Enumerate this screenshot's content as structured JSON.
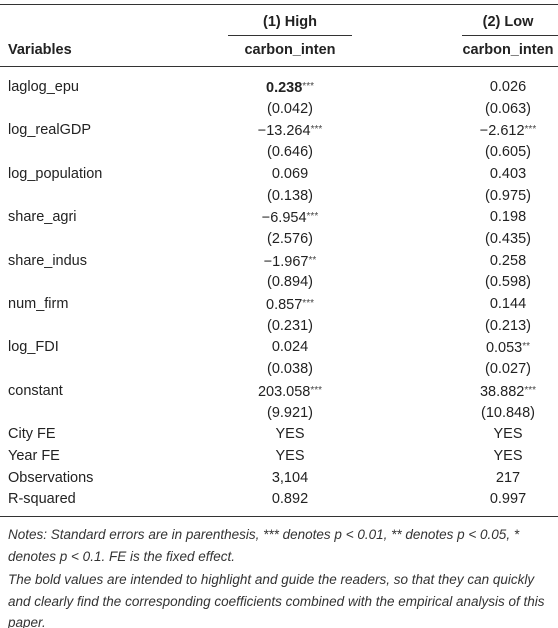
{
  "table": {
    "header": {
      "col1_group": "(1) High",
      "col2_group": "(2) Low",
      "var_label": "Variables",
      "col1": "carbon_inten",
      "col2": "carbon_inten"
    },
    "rows": [
      {
        "label": "laglog_epu",
        "c1": {
          "v": "0.238",
          "s": "***",
          "bold": true
        },
        "c2": {
          "v": "0.026"
        }
      },
      {
        "c1": {
          "v": "(0.042)"
        },
        "c2": {
          "v": "(0.063)"
        }
      },
      {
        "label": "log_realGDP",
        "c1": {
          "v": "−13.264",
          "s": "***"
        },
        "c2": {
          "v": "−2.612",
          "s": "***"
        }
      },
      {
        "c1": {
          "v": "(0.646)"
        },
        "c2": {
          "v": "(0.605)"
        }
      },
      {
        "label": "log_population",
        "c1": {
          "v": "0.069"
        },
        "c2": {
          "v": "0.403"
        }
      },
      {
        "c1": {
          "v": "(0.138)"
        },
        "c2": {
          "v": "(0.975)"
        }
      },
      {
        "label": "share_agri",
        "c1": {
          "v": "−6.954",
          "s": "***"
        },
        "c2": {
          "v": "0.198"
        }
      },
      {
        "c1": {
          "v": "(2.576)"
        },
        "c2": {
          "v": "(0.435)"
        }
      },
      {
        "label": "share_indus",
        "c1": {
          "v": "−1.967",
          "s": "**"
        },
        "c2": {
          "v": "0.258"
        }
      },
      {
        "c1": {
          "v": "(0.894)"
        },
        "c2": {
          "v": "(0.598)"
        }
      },
      {
        "label": "num_firm",
        "c1": {
          "v": "0.857",
          "s": "***"
        },
        "c2": {
          "v": "0.144"
        }
      },
      {
        "c1": {
          "v": "(0.231)"
        },
        "c2": {
          "v": "(0.213)"
        }
      },
      {
        "label": "log_FDI",
        "c1": {
          "v": "0.024"
        },
        "c2": {
          "v": "0.053",
          "s": "**"
        }
      },
      {
        "c1": {
          "v": "(0.038)"
        },
        "c2": {
          "v": "(0.027)"
        }
      },
      {
        "label": "constant",
        "c1": {
          "v": "203.058",
          "s": "***"
        },
        "c2": {
          "v": "38.882",
          "s": "***"
        }
      },
      {
        "c1": {
          "v": "(9.921)"
        },
        "c2": {
          "v": "(10.848)"
        }
      },
      {
        "label": "City FE",
        "c1": {
          "v": "YES"
        },
        "c2": {
          "v": "YES"
        }
      },
      {
        "label": "Year FE",
        "c1": {
          "v": "YES"
        },
        "c2": {
          "v": "YES"
        }
      },
      {
        "label": "Observations",
        "c1": {
          "v": "3,104"
        },
        "c2": {
          "v": "217"
        }
      },
      {
        "label": "R-squared",
        "c1": {
          "v": "0.892"
        },
        "c2": {
          "v": "0.997"
        }
      }
    ]
  },
  "notes": [
    "Notes: Standard errors are in parenthesis, *** denotes p < 0.01, ** denotes p < 0.05, * denotes p < 0.1. FE is the fixed effect.",
    "The bold values are intended to highlight and guide the readers, so that they can quickly and clearly find the corresponding coefficients combined with the empirical analysis of this paper."
  ]
}
